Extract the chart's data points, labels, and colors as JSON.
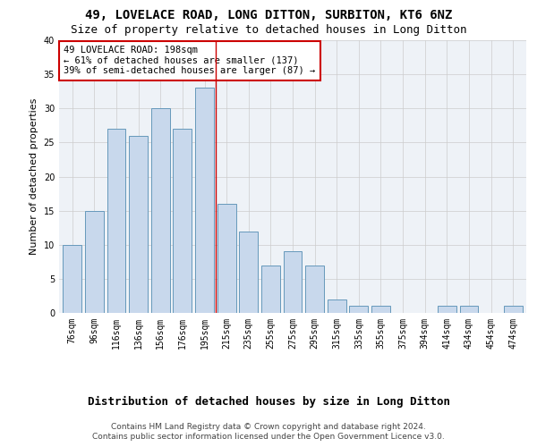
{
  "title": "49, LOVELACE ROAD, LONG DITTON, SURBITON, KT6 6NZ",
  "subtitle": "Size of property relative to detached houses in Long Ditton",
  "xlabel": "Distribution of detached houses by size in Long Ditton",
  "ylabel": "Number of detached properties",
  "bar_labels": [
    "76sqm",
    "96sqm",
    "116sqm",
    "136sqm",
    "156sqm",
    "176sqm",
    "195sqm",
    "215sqm",
    "235sqm",
    "255sqm",
    "275sqm",
    "295sqm",
    "315sqm",
    "335sqm",
    "355sqm",
    "375sqm",
    "394sqm",
    "414sqm",
    "434sqm",
    "454sqm",
    "474sqm"
  ],
  "bar_values": [
    10,
    15,
    27,
    26,
    30,
    27,
    33,
    16,
    12,
    7,
    9,
    7,
    2,
    1,
    1,
    0,
    0,
    1,
    1,
    0,
    1
  ],
  "bar_color": "#c8d8ec",
  "bar_edge_color": "#6699bb",
  "vline_x_index": 6.5,
  "vline_color": "#cc0000",
  "annotation_text": "49 LOVELACE ROAD: 198sqm\n← 61% of detached houses are smaller (137)\n39% of semi-detached houses are larger (87) →",
  "annotation_box_color": "white",
  "annotation_box_edge": "#cc0000",
  "ylim": [
    0,
    40
  ],
  "yticks": [
    0,
    5,
    10,
    15,
    20,
    25,
    30,
    35,
    40
  ],
  "footer1": "Contains HM Land Registry data © Crown copyright and database right 2024.",
  "footer2": "Contains public sector information licensed under the Open Government Licence v3.0.",
  "bg_color": "#ffffff",
  "plot_bg_color": "#eef2f7",
  "title_fontsize": 10,
  "subtitle_fontsize": 9,
  "xlabel_fontsize": 9,
  "ylabel_fontsize": 8,
  "tick_fontsize": 7,
  "annotation_fontsize": 7.5,
  "footer_fontsize": 6.5
}
